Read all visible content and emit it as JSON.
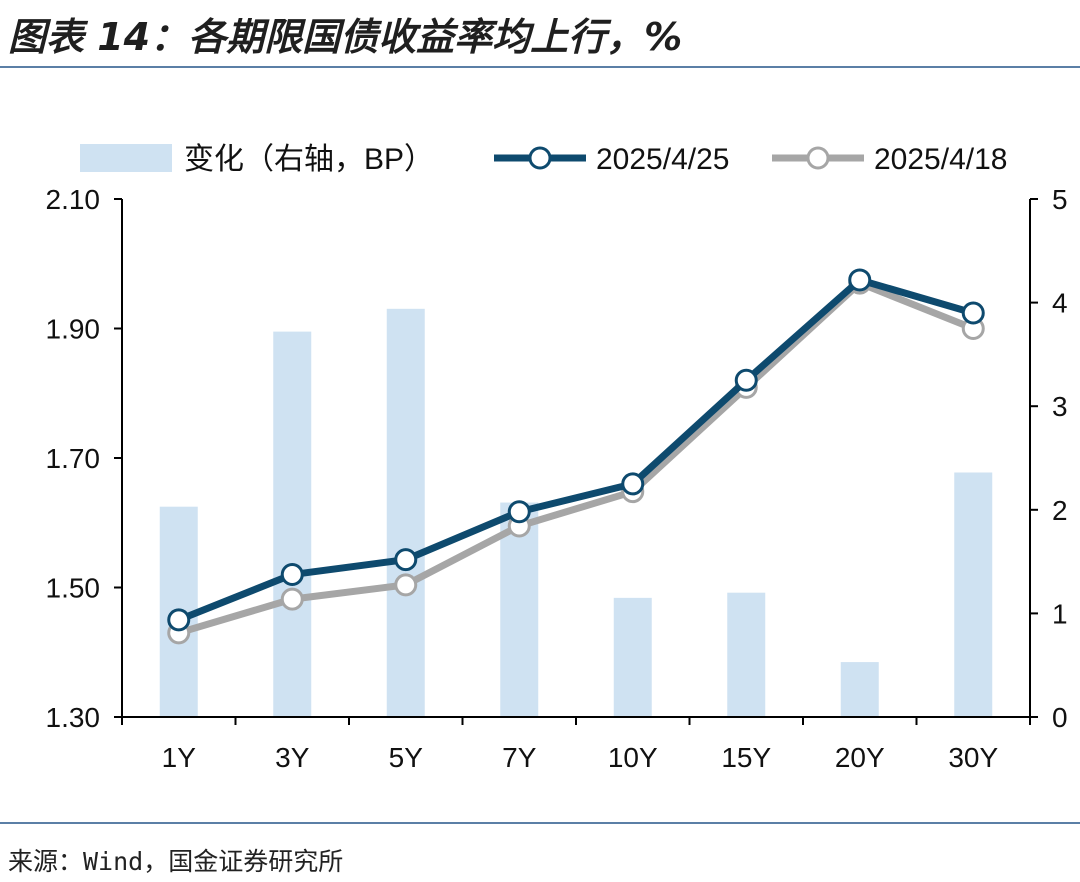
{
  "header": {
    "title": "图表 14：各期限国债收益率均上行，%"
  },
  "footer": {
    "source": "来源：Wind，国金证券研究所"
  },
  "colors": {
    "bar": "#cfe2f2",
    "line_current": "#0e4a6e",
    "line_prev": "#a6a6a6"
  },
  "chart_data": {
    "type": "bar",
    "categories": [
      "1Y",
      "3Y",
      "5Y",
      "7Y",
      "10Y",
      "15Y",
      "20Y",
      "30Y"
    ],
    "series": [
      {
        "name": "变化（右轴，BP）",
        "type": "bar",
        "axis": "right",
        "values": [
          2.03,
          3.72,
          3.94,
          2.07,
          1.15,
          1.2,
          0.53,
          2.36
        ]
      },
      {
        "name": "2025/4/25",
        "type": "line",
        "axis": "left",
        "values": [
          1.45,
          1.52,
          1.543,
          1.617,
          1.66,
          1.82,
          1.975,
          1.924
        ]
      },
      {
        "name": "2025/4/18",
        "type": "line",
        "axis": "left",
        "values": [
          1.43,
          1.482,
          1.504,
          1.595,
          1.648,
          1.809,
          1.97,
          1.9
        ]
      }
    ],
    "yleft": {
      "ticks": [
        "2.10",
        "1.90",
        "1.70",
        "1.50",
        "1.30"
      ],
      "ylim": [
        1.3,
        2.1
      ]
    },
    "yright": {
      "ticks": [
        "5",
        "4",
        "3",
        "2",
        "1",
        "0"
      ],
      "ylim": [
        0,
        5
      ]
    },
    "legend": "top"
  }
}
